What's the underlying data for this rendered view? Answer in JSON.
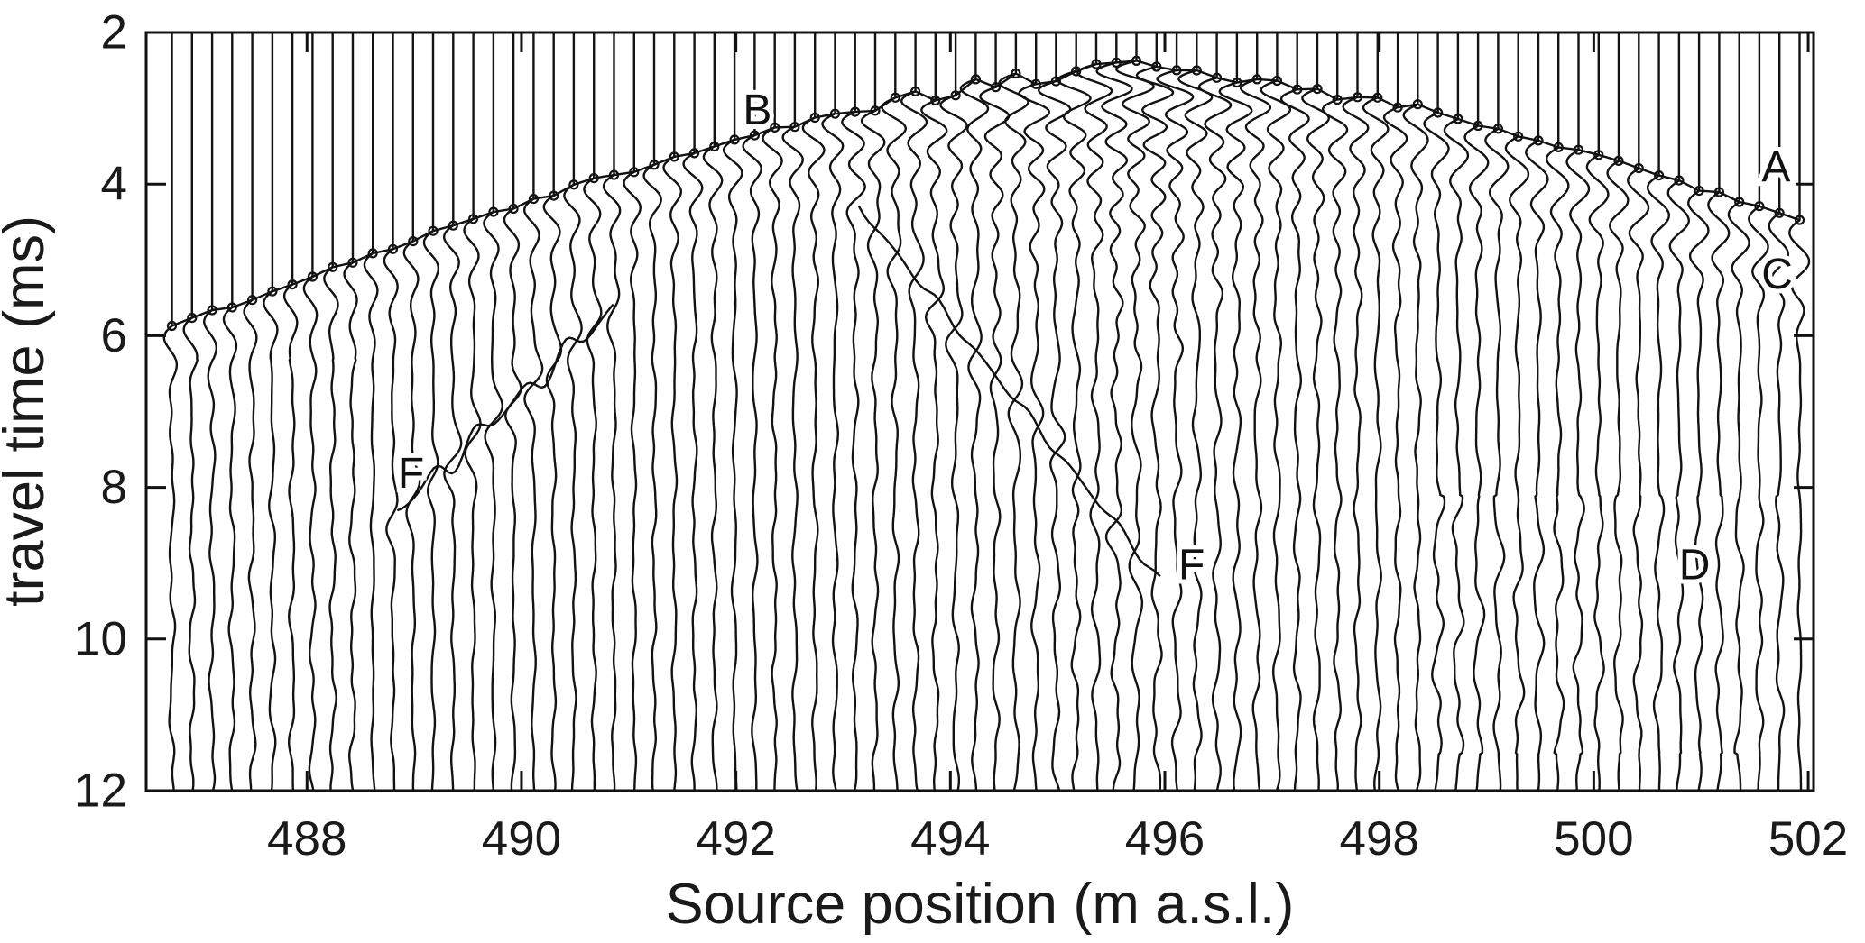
{
  "figure": {
    "background_color": "#ffffff",
    "line_color": "#121212",
    "text_color": "#1a1a1a"
  },
  "chart_data": {
    "type": "line",
    "subtype": "seismic-wiggle-trace-gather",
    "title": "",
    "xlabel": "Source position (m a.s.l.)",
    "ylabel": "travel time (ms)",
    "xlim": [
      486.5,
      502.05
    ],
    "ylim": [
      2,
      12
    ],
    "y_axis_inverted_downward": true,
    "grid": false,
    "legend": null,
    "x_ticks": [
      488,
      490,
      492,
      494,
      496,
      498,
      500,
      502
    ],
    "y_ticks": [
      2,
      4,
      6,
      8,
      10,
      12
    ],
    "trace_count": 82,
    "trace_x_start": 486.74,
    "trace_spacing_m": 0.1874,
    "first_break": {
      "description": "picked first-arrival travel-time curve with small circle markers, apex at the source position",
      "source_position_m": 495.8,
      "apex_time_ms": 2.42,
      "left_coeff": 0.149,
      "right_coeff": 0.155,
      "power": 1.43,
      "time_at_left_edge_ms": 6.05,
      "time_at_right_edge_ms": 4.55,
      "pick_marker": "open-circle"
    },
    "events": [
      {
        "name": "F-left-dipping-event",
        "x1": 488.85,
        "t1": 8.3,
        "x2": 490.85,
        "t2": 5.65,
        "zigzag": 0.2,
        "wavelet_amp": 12
      },
      {
        "name": "F-right-dipping-event",
        "x1": 493.15,
        "t1": 4.3,
        "x2": 495.95,
        "t2": 9.2,
        "zigzag": 0.08,
        "wavelet_amp": 10
      }
    ],
    "amplitude_anomalies": [
      {
        "name": "D-zone",
        "x_range": [
          498.5,
          501.8
        ],
        "t_range": [
          8.1,
          11.5
        ],
        "gain": 2.1
      },
      {
        "name": "left-edge-zone",
        "x_range": [
          486.5,
          488.45
        ],
        "t_range": [
          6.3,
          12.0
        ],
        "gain": 1.8
      }
    ],
    "secondary_arrival_right": {
      "x_min": 498.3,
      "delay_ms": 0.75,
      "rel_amp": 0.5
    },
    "annotations": [
      {
        "label": "B",
        "x": 492.2,
        "t_ms": 3.03
      },
      {
        "label": "A",
        "x": 501.7,
        "t_ms": 3.78
      },
      {
        "label": "C",
        "x": 501.71,
        "t_ms": 5.19
      },
      {
        "label": "F",
        "x": 488.97,
        "t_ms": 7.82
      },
      {
        "label": "F",
        "x": 496.25,
        "t_ms": 9.03
      },
      {
        "label": "D",
        "x": 500.94,
        "t_ms": 9.03
      }
    ]
  }
}
